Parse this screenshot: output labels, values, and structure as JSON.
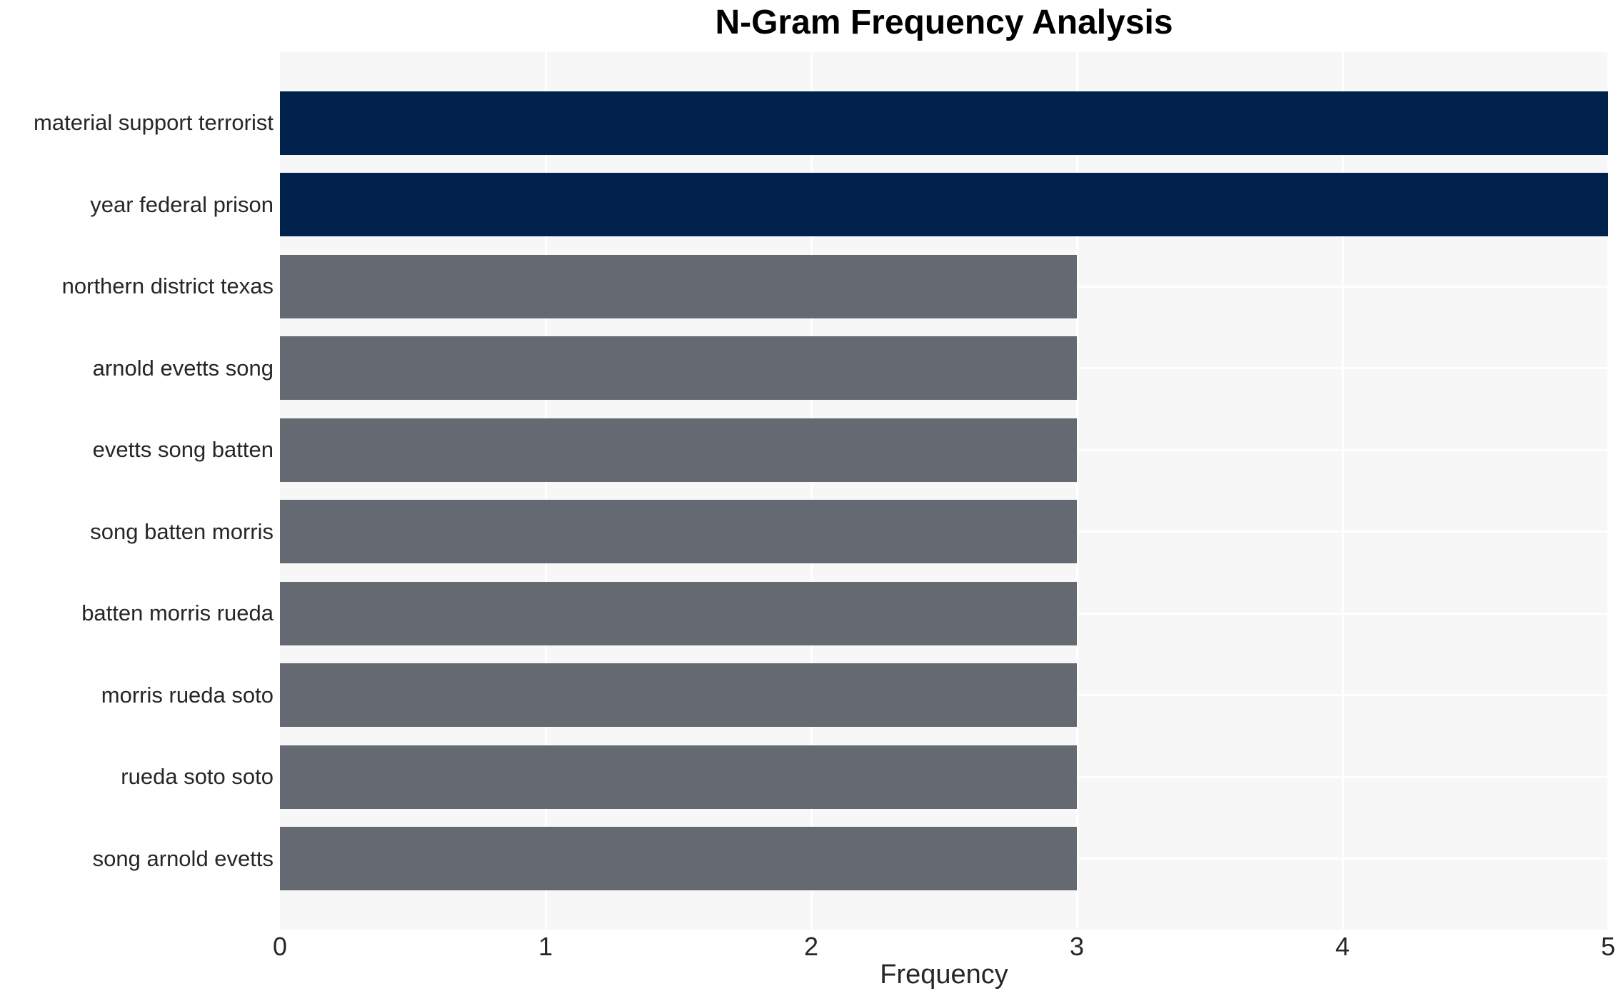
{
  "title": "N-Gram Frequency Analysis",
  "chart_data": {
    "type": "bar",
    "orientation": "horizontal",
    "title": "N-Gram Frequency Analysis",
    "xlabel": "Frequency",
    "ylabel": "",
    "categories": [
      "material support terrorist",
      "year federal prison",
      "northern district texas",
      "arnold evetts song",
      "evetts song batten",
      "song batten morris",
      "batten morris rueda",
      "morris rueda soto",
      "rueda soto soto",
      "song arnold evetts"
    ],
    "values": [
      5,
      5,
      3,
      3,
      3,
      3,
      3,
      3,
      3,
      3
    ],
    "colors": [
      "#01224d",
      "#01224d",
      "#656a72",
      "#656a72",
      "#656a72",
      "#656a72",
      "#656a72",
      "#656a72",
      "#656a72",
      "#656a72"
    ],
    "x_ticks": [
      0,
      1,
      2,
      3,
      4,
      5
    ],
    "xlim": [
      0,
      5
    ],
    "grid": "on",
    "legend": "none",
    "plot_background": "#f7f7f7",
    "grid_color": "#ffffff",
    "highlight_color": "#01224d",
    "default_bar_color": "#656a72",
    "text_color": "#262626",
    "title_color": "#000000"
  }
}
